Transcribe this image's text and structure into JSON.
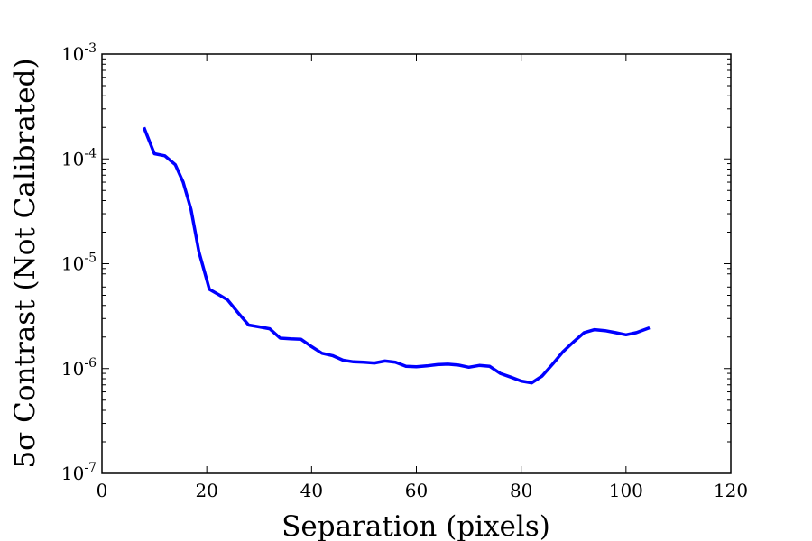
{
  "chart_data": {
    "type": "line",
    "title": "",
    "xlabel": "Separation (pixels)",
    "ylabel": "5σ Contrast (Not Calibrated)",
    "xlim": [
      0,
      120
    ],
    "ylim": [
      1e-07,
      0.001
    ],
    "yscale": "log",
    "grid": false,
    "x_ticks": [
      0,
      20,
      40,
      60,
      80,
      100,
      120
    ],
    "x_tick_labels": [
      "0",
      "20",
      "40",
      "60",
      "80",
      "100",
      "120"
    ],
    "y_ticks": [
      1e-07,
      1e-06,
      1e-05,
      0.0001,
      0.001
    ],
    "y_tick_labels": [
      {
        "base": "10",
        "exp": "-7"
      },
      {
        "base": "10",
        "exp": "-6"
      },
      {
        "base": "10",
        "exp": "-5"
      },
      {
        "base": "10",
        "exp": "-4"
      },
      {
        "base": "10",
        "exp": "-3"
      }
    ],
    "series": [
      {
        "color": "#0000ff",
        "x": [
          8,
          10,
          12,
          14,
          15.5,
          17,
          18.5,
          20.5,
          22.5,
          24,
          26,
          28,
          30,
          32,
          34,
          36,
          38,
          40,
          42,
          44,
          46,
          48,
          50,
          52,
          54,
          56,
          58,
          60,
          62,
          64,
          66,
          68,
          70,
          72,
          74,
          76,
          78,
          80,
          82,
          84,
          86,
          88,
          90,
          92,
          94,
          96,
          98,
          100,
          102,
          104.5
        ],
        "y": [
          0.0002,
          0.000112,
          0.000107,
          8.8e-05,
          6e-05,
          3.3e-05,
          1.3e-05,
          5.7e-06,
          5e-06,
          4.5e-06,
          3.4e-06,
          2.6e-06,
          2.5e-06,
          2.4e-06,
          1.95e-06,
          1.92e-06,
          1.9e-06,
          1.62e-06,
          1.4e-06,
          1.33e-06,
          1.2e-06,
          1.16e-06,
          1.15e-06,
          1.13e-06,
          1.18e-06,
          1.15e-06,
          1.05e-06,
          1.04e-06,
          1.06e-06,
          1.09e-06,
          1.1e-06,
          1.08e-06,
          1.03e-06,
          1.07e-06,
          1.05e-06,
          9e-07,
          8.3e-07,
          7.6e-07,
          7.3e-07,
          8.5e-07,
          1.1e-06,
          1.45e-06,
          1.8e-06,
          2.2e-06,
          2.35e-06,
          2.3e-06,
          2.2e-06,
          2.1e-06,
          2.2e-06,
          2.45e-06
        ]
      }
    ]
  }
}
